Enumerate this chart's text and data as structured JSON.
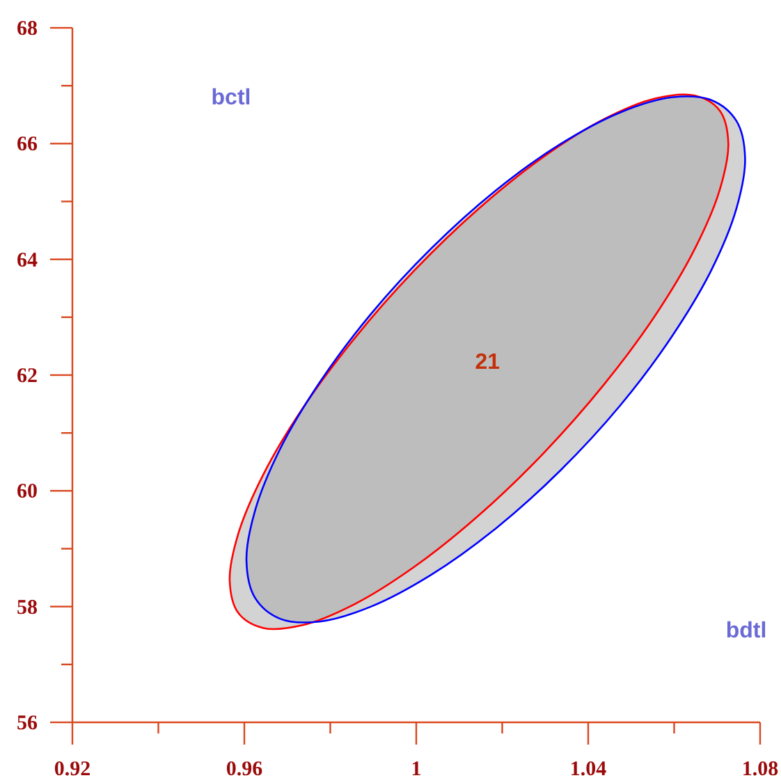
{
  "chart_data": {
    "type": "area",
    "xlabel": "bdtl",
    "ylabel": "bctl",
    "annotations": [
      "21"
    ],
    "xlim": [
      0.92,
      1.08
    ],
    "ylim": [
      56,
      68
    ],
    "xticks": [
      0.92,
      {
        "value": 0.94,
        "label": null
      },
      0.96,
      {
        "value": 0.98,
        "label": null
      },
      1,
      {
        "value": 1.02,
        "label": null
      },
      1.04,
      {
        "value": 1.06,
        "label": null
      },
      1.08
    ],
    "yticks": [
      56,
      {
        "value": 57,
        "label": null
      },
      58,
      {
        "value": 59,
        "label": null
      },
      60,
      {
        "value": 61,
        "label": null
      },
      62,
      {
        "value": 63,
        "label": null
      },
      64,
      {
        "value": 65,
        "label": null
      },
      66,
      {
        "value": 67,
        "label": null
      },
      68
    ],
    "grid": false,
    "marker": "none",
    "line_style": "solid",
    "series": [
      {
        "color": "#ff0000",
        "x": [
          1.0726,
          1.0706,
          1.0648,
          1.0556,
          1.0436,
          1.0296,
          1.0146,
          0.9996,
          0.9856,
          0.9736,
          0.9644,
          0.9586,
          0.9566,
          0.9586,
          0.9644,
          0.9736,
          0.9856,
          0.9996,
          1.0146,
          1.0296,
          1.0436,
          1.0556,
          1.0648,
          1.0706
        ],
        "values": [
          66.01,
          66.57,
          66.83,
          66.78,
          66.42,
          65.77,
          64.88,
          63.81,
          62.63,
          61.43,
          60.28,
          59.26,
          58.45,
          57.89,
          57.63,
          57.68,
          58.04,
          58.69,
          59.58,
          60.65,
          61.83,
          63.03,
          64.18,
          65.2
        ]
      },
      {
        "color": "#0000ff",
        "x": [
          1.0765,
          1.0745,
          1.0687,
          1.0595,
          1.0475,
          1.0335,
          1.0185,
          1.0035,
          0.9895,
          0.9775,
          0.9683,
          0.9625,
          0.9605,
          0.9625,
          0.9683,
          0.9775,
          0.9895,
          1.0035,
          1.0185,
          1.0335,
          1.0475,
          1.0595,
          1.0687,
          1.0745
        ],
        "values": [
          65.75,
          66.39,
          66.75,
          66.8,
          66.54,
          65.99,
          65.19,
          64.19,
          63.06,
          61.87,
          60.72,
          59.66,
          58.79,
          58.15,
          57.79,
          57.74,
          58.0,
          58.55,
          59.35,
          60.35,
          61.48,
          62.67,
          63.82,
          64.88
        ]
      }
    ]
  }
}
